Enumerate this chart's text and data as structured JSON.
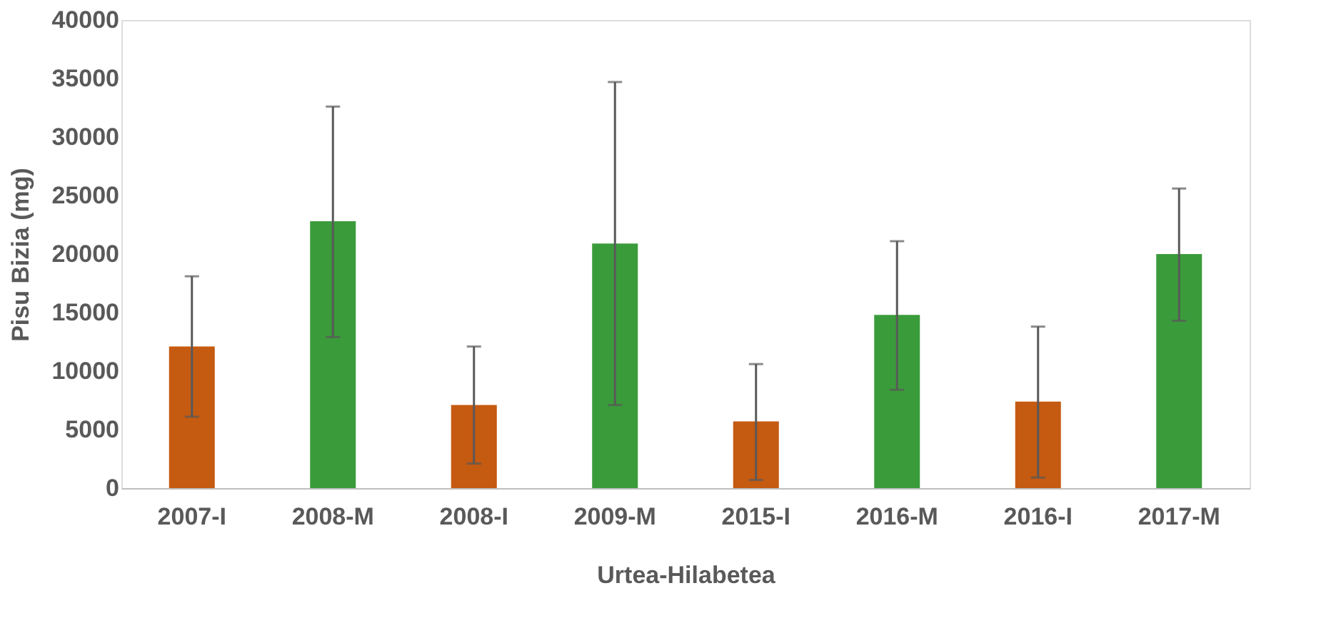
{
  "chart_data": {
    "type": "bar",
    "xlabel": "Urtea-Hilabetea",
    "ylabel": "Pisu Bizia (mg)",
    "categories": [
      "2007-I",
      "2008-M",
      "2008-I",
      "2009-M",
      "2015-I",
      "2016-M",
      "2016-I",
      "2017-M"
    ],
    "values": [
      12100,
      22800,
      7100,
      20900,
      5700,
      14800,
      7400,
      20000
    ],
    "colors": [
      "#c55a11",
      "#3a9b3a",
      "#c55a11",
      "#3a9b3a",
      "#c55a11",
      "#3a9b3a",
      "#c55a11",
      "#3a9b3a"
    ],
    "errors": [
      [
        6100,
        18100
      ],
      [
        12900,
        32600
      ],
      [
        2100,
        12100
      ],
      [
        7100,
        34700
      ],
      [
        700,
        10600
      ],
      [
        8400,
        21100
      ],
      [
        900,
        13800
      ],
      [
        14300,
        25600
      ]
    ],
    "ylim": [
      0,
      40000
    ],
    "yticks": [
      0,
      5000,
      10000,
      15000,
      20000,
      25000,
      30000,
      35000,
      40000
    ],
    "grid": false
  }
}
